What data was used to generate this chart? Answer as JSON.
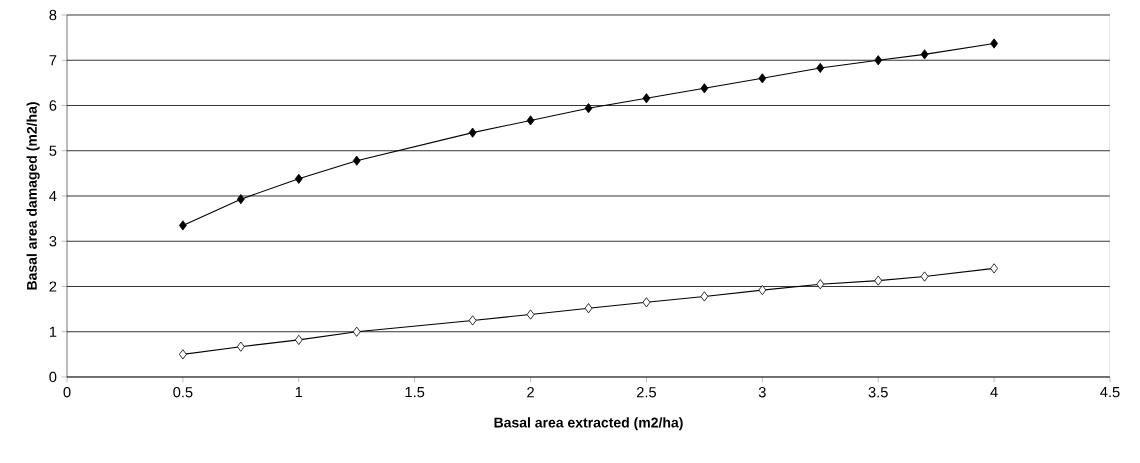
{
  "chart_data": {
    "type": "line",
    "xlabel": "Basal area extracted (m2/ha)",
    "ylabel": "Basal area damaged (m2/ha)",
    "x": [
      0.5,
      0.75,
      1,
      1.25,
      1.75,
      2,
      2.25,
      2.5,
      2.75,
      3,
      3.25,
      3.5,
      3.7,
      4
    ],
    "series": [
      {
        "color": "#000000",
        "values": [
          3.35,
          3.93,
          4.38,
          4.78,
          5.4,
          5.67,
          5.94,
          6.16,
          6.38,
          6.6,
          6.83,
          7.0,
          7.13,
          7.37
        ]
      },
      {
        "color": "#ffffff",
        "values": [
          0.5,
          0.67,
          0.82,
          1.0,
          1.25,
          1.38,
          1.52,
          1.65,
          1.78,
          1.92,
          2.05,
          2.13,
          2.22,
          2.4
        ]
      }
    ],
    "xlim": [
      0,
      4.5
    ],
    "ylim": [
      0,
      8
    ],
    "xticks": [
      0,
      0.5,
      1,
      1.5,
      2,
      2.5,
      3,
      3.5,
      4,
      4.5
    ],
    "yticks": [
      0,
      1,
      2,
      3,
      4,
      5,
      6,
      7,
      8
    ],
    "grid": "y",
    "marker": "diamond"
  }
}
